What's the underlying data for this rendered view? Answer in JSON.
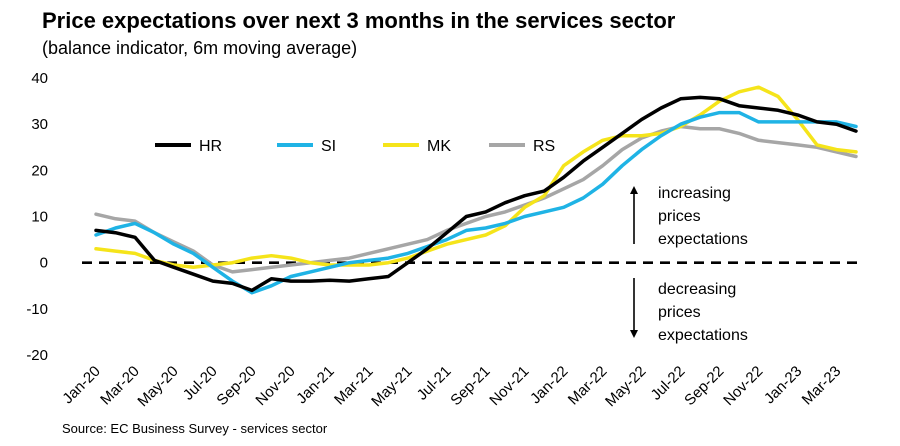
{
  "title": "Price expectations over next 3 months in the services sector",
  "subtitle": "(balance indicator, 6m moving average)",
  "source": "Source:  EC Business Survey  - services  sector",
  "chart_data": {
    "type": "line",
    "y_ticks": [
      "40",
      "30",
      "20",
      "10",
      "0",
      "-10",
      "-20"
    ],
    "ylim": [
      -20,
      40
    ],
    "x_tick_labels": [
      "Jan-20",
      "Mar-20",
      "May-20",
      "Jul-20",
      "Sep-20",
      "Nov-20",
      "Jan-21",
      "Mar-21",
      "May-21",
      "Jul-21",
      "Sep-21",
      "Nov-21",
      "Jan-22",
      "Mar-22",
      "May-22",
      "Jul-22",
      "Sep-22",
      "Nov-22",
      "Jan-23",
      "Mar-23"
    ],
    "x": [
      "Jan-20",
      "Feb-20",
      "Mar-20",
      "Apr-20",
      "May-20",
      "Jun-20",
      "Jul-20",
      "Aug-20",
      "Sep-20",
      "Oct-20",
      "Nov-20",
      "Dec-20",
      "Jan-21",
      "Feb-21",
      "Mar-21",
      "Apr-21",
      "May-21",
      "Jun-21",
      "Jul-21",
      "Aug-21",
      "Sep-21",
      "Oct-21",
      "Nov-21",
      "Dec-21",
      "Jan-22",
      "Feb-22",
      "Mar-22",
      "Apr-22",
      "May-22",
      "Jun-22",
      "Jul-22",
      "Aug-22",
      "Sep-22",
      "Oct-22",
      "Nov-22",
      "Dec-22",
      "Jan-23",
      "Feb-23",
      "Mar-23",
      "Apr-23"
    ],
    "series": [
      {
        "name": "HR",
        "color": "#000000",
        "values": [
          7,
          6.5,
          5.5,
          0.5,
          -1,
          -2.5,
          -4,
          -4.5,
          -6,
          -3.5,
          -4,
          -4,
          -3.8,
          -4,
          -3.5,
          -3,
          0,
          3,
          6.5,
          10,
          11,
          13,
          14.5,
          15.5,
          18.5,
          22,
          25,
          28,
          31,
          33.5,
          35.5,
          35.8,
          35.5,
          34,
          33.5,
          33,
          32,
          30.5,
          30,
          28.5
        ]
      },
      {
        "name": "SI",
        "color": "#1FB3E5",
        "values": [
          6,
          7.5,
          8.5,
          6.5,
          4,
          2,
          -1,
          -4,
          -6.5,
          -5,
          -3,
          -2,
          -1,
          0,
          0.5,
          1,
          2,
          3.5,
          5,
          7,
          7.5,
          8.5,
          10,
          11,
          12,
          14,
          17,
          21,
          24.5,
          27.5,
          30,
          31.5,
          32.5,
          32.5,
          30.5,
          30.5,
          30.5,
          30.5,
          30.5,
          29.5
        ]
      },
      {
        "name": "MK",
        "color": "#F5E41A",
        "values": [
          3,
          2.5,
          2,
          0.5,
          -0.5,
          -1,
          -0.5,
          0,
          1,
          1.5,
          1,
          0,
          -0.5,
          -0.5,
          -0.5,
          0,
          1,
          2.5,
          4,
          5,
          6,
          8,
          12,
          14.5,
          21,
          24,
          26.5,
          27.5,
          27.5,
          28,
          29.5,
          32,
          35,
          37,
          38,
          36,
          31,
          25.5,
          24.5,
          24
        ]
      },
      {
        "name": "RS",
        "color": "#A6A6A6",
        "values": [
          10.5,
          9.5,
          9,
          6.5,
          4.5,
          2.5,
          -0.5,
          -2,
          -1.5,
          -1,
          -0.5,
          0,
          0.5,
          1,
          2,
          3,
          4,
          5,
          7,
          8.5,
          10,
          11,
          12.5,
          14,
          16,
          18,
          21,
          24.5,
          27,
          28.5,
          29.5,
          29,
          29,
          28,
          26.5,
          26,
          25.5,
          25,
          24,
          23
        ]
      }
    ],
    "legend": [
      "HR",
      "SI",
      "MK",
      "RS"
    ],
    "legend_placement": "top-left",
    "zero_line": "dashed",
    "annotations": [
      {
        "lines": [
          "increasing",
          "prices",
          "expectations"
        ],
        "arrow": "up"
      },
      {
        "lines": [
          "decreasing",
          "prices",
          "expectations"
        ],
        "arrow": "down"
      }
    ]
  }
}
